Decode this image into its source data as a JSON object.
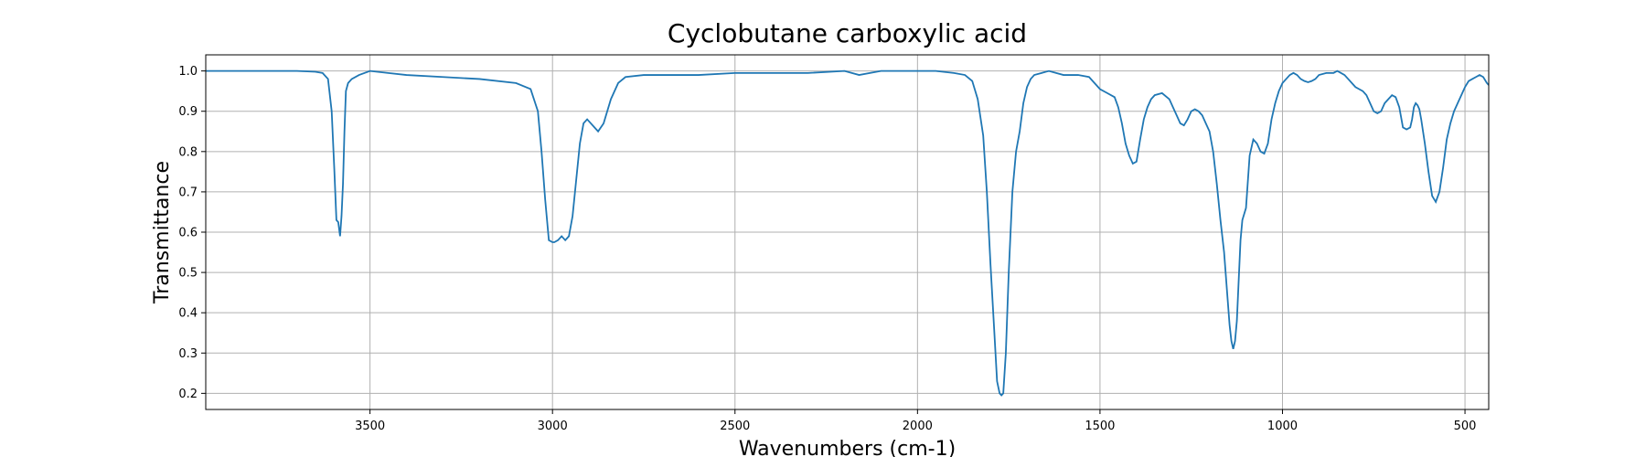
{
  "chart_data": {
    "type": "line",
    "title": "Cyclobutane carboxylic acid",
    "xlabel": "Wavenumbers (cm-1)",
    "ylabel": "Transmittance",
    "xlim": [
      3950,
      435
    ],
    "ylim": [
      0.16,
      1.04
    ],
    "x_reversed": true,
    "grid": true,
    "line_color": "#1f77b4",
    "xticks": [
      3500,
      3000,
      2500,
      2000,
      1500,
      1000,
      500
    ],
    "yticks": [
      0.2,
      0.3,
      0.4,
      0.5,
      0.6,
      0.7,
      0.8,
      0.9,
      1.0
    ],
    "series": [
      {
        "x": [
          3950,
          3900,
          3800,
          3700,
          3650,
          3630,
          3615,
          3605,
          3598,
          3592,
          3587,
          3582,
          3578,
          3574,
          3570,
          3566,
          3560,
          3550,
          3530,
          3500,
          3450,
          3400,
          3300,
          3200,
          3100,
          3060,
          3040,
          3030,
          3020,
          3010,
          3000,
          2995,
          2985,
          2975,
          2965,
          2955,
          2945,
          2935,
          2925,
          2915,
          2905,
          2895,
          2885,
          2875,
          2860,
          2840,
          2820,
          2800,
          2750,
          2700,
          2600,
          2500,
          2400,
          2300,
          2200,
          2160,
          2100,
          2050,
          2000,
          1950,
          1900,
          1870,
          1850,
          1835,
          1820,
          1810,
          1800,
          1790,
          1782,
          1775,
          1770,
          1765,
          1758,
          1750,
          1740,
          1730,
          1720,
          1710,
          1700,
          1690,
          1680,
          1660,
          1640,
          1620,
          1600,
          1560,
          1530,
          1515,
          1500,
          1480,
          1460,
          1450,
          1440,
          1430,
          1420,
          1410,
          1400,
          1390,
          1380,
          1370,
          1360,
          1350,
          1330,
          1310,
          1300,
          1290,
          1280,
          1270,
          1260,
          1250,
          1240,
          1230,
          1220,
          1210,
          1200,
          1190,
          1180,
          1170,
          1160,
          1150,
          1145,
          1140,
          1135,
          1130,
          1125,
          1120,
          1115,
          1110,
          1100,
          1090,
          1080,
          1070,
          1060,
          1050,
          1040,
          1030,
          1020,
          1010,
          1000,
          990,
          980,
          970,
          960,
          950,
          940,
          930,
          920,
          910,
          900,
          880,
          860,
          850,
          840,
          830,
          820,
          810,
          800,
          790,
          780,
          770,
          760,
          750,
          740,
          730,
          720,
          710,
          700,
          690,
          680,
          670,
          660,
          650,
          645,
          640,
          635,
          630,
          625,
          620,
          610,
          600,
          590,
          580,
          570,
          560,
          550,
          540,
          530,
          520,
          510,
          500,
          490,
          480,
          470,
          460,
          450,
          440,
          435
        ],
        "y": [
          1.0,
          1.0,
          1.0,
          1.0,
          0.998,
          0.995,
          0.98,
          0.9,
          0.76,
          0.63,
          0.625,
          0.59,
          0.64,
          0.72,
          0.85,
          0.95,
          0.97,
          0.98,
          0.99,
          1.0,
          0.995,
          0.99,
          0.985,
          0.98,
          0.97,
          0.955,
          0.9,
          0.8,
          0.68,
          0.58,
          0.575,
          0.575,
          0.58,
          0.59,
          0.58,
          0.59,
          0.64,
          0.73,
          0.82,
          0.87,
          0.88,
          0.87,
          0.86,
          0.85,
          0.87,
          0.93,
          0.97,
          0.985,
          0.99,
          0.99,
          0.99,
          0.995,
          0.995,
          0.995,
          1.0,
          0.99,
          1.0,
          1.0,
          1.0,
          1.0,
          0.995,
          0.99,
          0.975,
          0.93,
          0.84,
          0.7,
          0.52,
          0.36,
          0.23,
          0.2,
          0.195,
          0.2,
          0.3,
          0.5,
          0.7,
          0.8,
          0.85,
          0.92,
          0.96,
          0.98,
          0.99,
          0.995,
          1.0,
          0.995,
          0.99,
          0.99,
          0.985,
          0.97,
          0.955,
          0.945,
          0.935,
          0.91,
          0.87,
          0.82,
          0.79,
          0.77,
          0.775,
          0.83,
          0.88,
          0.91,
          0.93,
          0.94,
          0.945,
          0.93,
          0.91,
          0.89,
          0.87,
          0.865,
          0.88,
          0.9,
          0.905,
          0.9,
          0.89,
          0.87,
          0.85,
          0.8,
          0.72,
          0.63,
          0.55,
          0.43,
          0.37,
          0.33,
          0.31,
          0.33,
          0.38,
          0.48,
          0.58,
          0.63,
          0.66,
          0.79,
          0.83,
          0.82,
          0.8,
          0.795,
          0.82,
          0.88,
          0.92,
          0.95,
          0.97,
          0.98,
          0.99,
          0.995,
          0.99,
          0.98,
          0.975,
          0.972,
          0.975,
          0.98,
          0.99,
          0.995,
          0.995,
          1.0,
          0.995,
          0.99,
          0.98,
          0.97,
          0.96,
          0.955,
          0.95,
          0.94,
          0.92,
          0.9,
          0.895,
          0.9,
          0.92,
          0.93,
          0.94,
          0.935,
          0.91,
          0.86,
          0.855,
          0.86,
          0.88,
          0.91,
          0.92,
          0.915,
          0.905,
          0.88,
          0.82,
          0.75,
          0.69,
          0.675,
          0.7,
          0.76,
          0.83,
          0.87,
          0.9,
          0.92,
          0.94,
          0.96,
          0.975,
          0.98,
          0.985,
          0.99,
          0.985,
          0.97,
          0.965
        ]
      }
    ]
  }
}
